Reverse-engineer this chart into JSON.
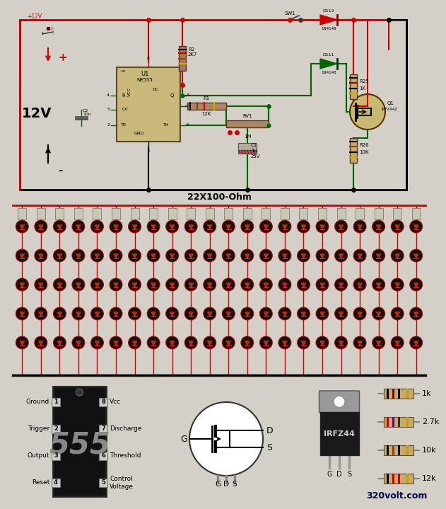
{
  "bg_color": "#d4d0c8",
  "red": "#cc0000",
  "black": "#000000",
  "green": "#006600",
  "dark_green": "#336600",
  "ne555_fill": "#c8b87a",
  "ne555_edge": "#5a4a2a",
  "label_22x100": "22X100-Ohm",
  "watermark": "320volt.com",
  "pin_labels_left": [
    "Ground",
    "Trigger",
    "Output",
    "Reset"
  ],
  "pin_labels_right": [
    "Vcc",
    "Discharge",
    "Threshold",
    "Control\nVoltage"
  ],
  "pin_numbers_left": [
    "1",
    "2",
    "3",
    "4"
  ],
  "pin_numbers_right": [
    "8",
    "7",
    "6",
    "5"
  ],
  "resistor_refs": [
    {
      "label": "1k",
      "bands": [
        "#000000",
        "#8B0000",
        "#000000",
        "#c8a000"
      ]
    },
    {
      "label": "2.7k",
      "bands": [
        "#cc0000",
        "#660099",
        "#333300",
        "#c8a000"
      ]
    },
    {
      "label": "10k",
      "bands": [
        "#000000",
        "#8B4513",
        "#000000",
        "#c8a000"
      ]
    },
    {
      "label": "12k",
      "bands": [
        "#000000",
        "#cc0000",
        "#cc0000",
        "#c8a000"
      ]
    }
  ],
  "num_leds_cols": 22,
  "num_leds_rows": 5,
  "resistor_body_color": "#c8a86b",
  "resistor_edge_color": "#555533",
  "led_bg": "#111111",
  "led_ring": "#cc0000",
  "led_tri": "#cc2200",
  "ic555_fill": "#111111",
  "ic555_edge": "#333333",
  "mosfet_circle_fill": "#ffffff",
  "mosfet_circle_edge": "#333333",
  "irfz_body_fill": "#1a1a1a",
  "irfz_tab_fill": "#888888",
  "irfz_text": "#dddddd"
}
